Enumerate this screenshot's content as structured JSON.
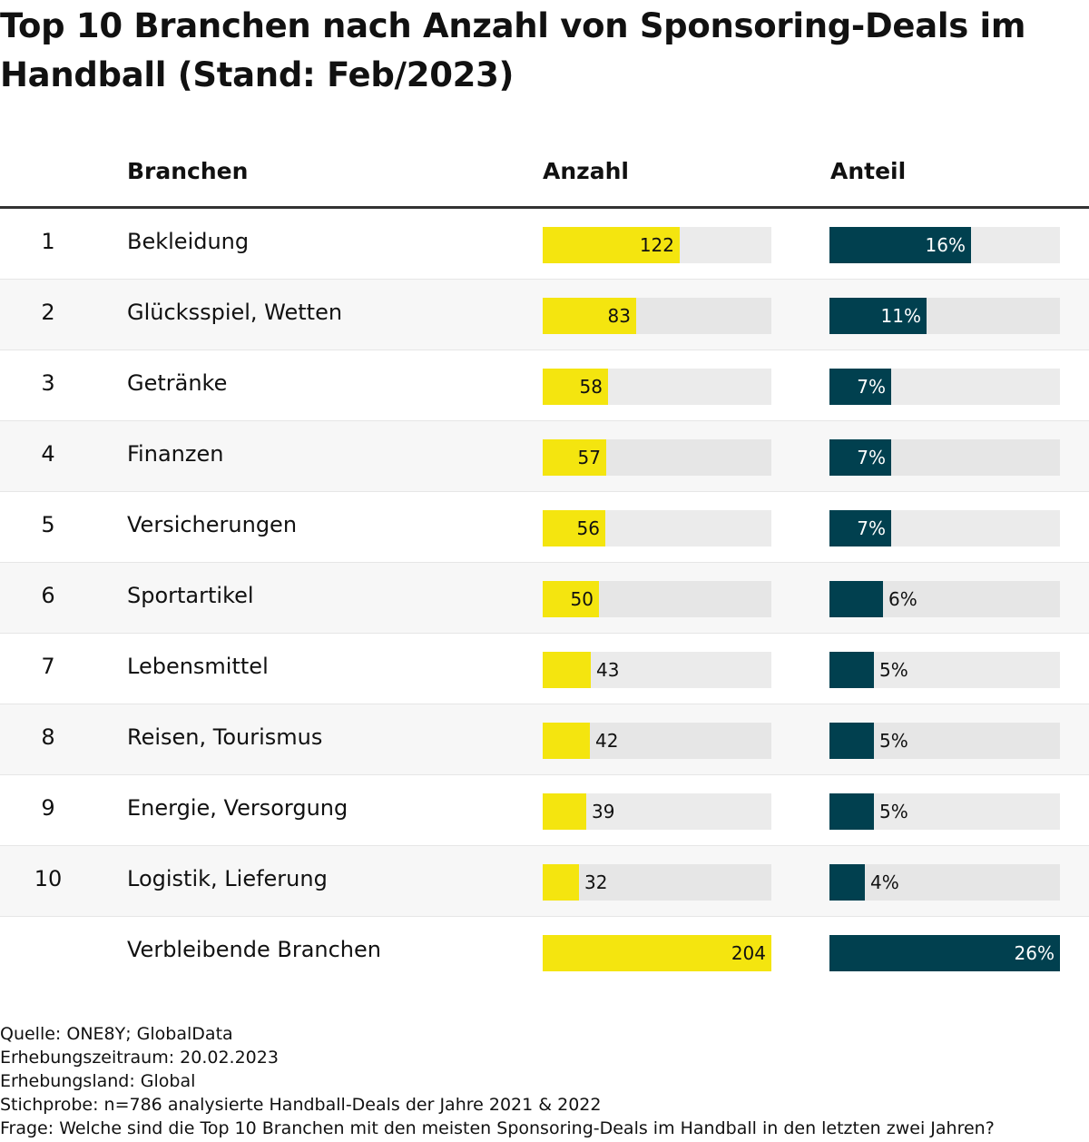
{
  "title": "Top 10 Branchen nach Anzahl von Sponsoring-Deals im Handball (Stand: Feb/2023)",
  "colors": {
    "anzahl": "#f4e50f",
    "anteil": "#01404f",
    "track": "#ebebeb"
  },
  "chart_data": {
    "type": "table",
    "title": "Top 10 Branchen nach Anzahl von Sponsoring-Deals im Handball (Stand: Feb/2023)",
    "columns": [
      "",
      "Branchen",
      "Anzahl",
      "Anteil"
    ],
    "rows": [
      {
        "rank": "1",
        "branche": "Bekleidung",
        "anzahl": 122,
        "anteil": 16
      },
      {
        "rank": "2",
        "branche": "Glücksspiel, Wetten",
        "anzahl": 83,
        "anteil": 11
      },
      {
        "rank": "3",
        "branche": "Getränke",
        "anzahl": 58,
        "anteil": 7
      },
      {
        "rank": "4",
        "branche": "Finanzen",
        "anzahl": 57,
        "anteil": 7
      },
      {
        "rank": "5",
        "branche": "Versicherungen",
        "anzahl": 56,
        "anteil": 7
      },
      {
        "rank": "6",
        "branche": "Sportartikel",
        "anzahl": 50,
        "anteil": 6
      },
      {
        "rank": "7",
        "branche": "Lebensmittel",
        "anzahl": 43,
        "anteil": 5
      },
      {
        "rank": "8",
        "branche": "Reisen, Tourismus",
        "anzahl": 42,
        "anteil": 5
      },
      {
        "rank": "9",
        "branche": "Energie, Versorgung",
        "anzahl": 39,
        "anteil": 5
      },
      {
        "rank": "10",
        "branche": "Logistik, Lieferung",
        "anzahl": 32,
        "anteil": 4
      },
      {
        "rank": "",
        "branche": "Verbleibende Branchen",
        "anzahl": 204,
        "anteil": 26
      }
    ],
    "anzahl_max": 204,
    "anteil_max": 26
  },
  "footer": [
    "Quelle: ONE8Y; GlobalData",
    "Erhebungszeitraum: 20.02.2023",
    "Erhebungsland: Global",
    "Stichprobe: n=786 analysierte Handball-Deals der Jahre 2021 & 2022",
    "Frage: Welche sind die Top 10 Branchen mit den meisten Sponsoring-Deals im Handball in den letzten zwei Jahren?"
  ]
}
